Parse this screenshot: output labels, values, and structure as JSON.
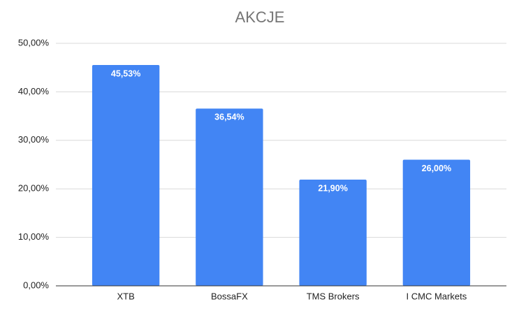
{
  "chart_data": {
    "type": "bar",
    "title": "AKCJE",
    "categories": [
      "XTB",
      "BossaFX",
      "TMS Brokers",
      "I CMC Markets"
    ],
    "values": [
      45.53,
      36.54,
      21.9,
      26.0
    ],
    "value_labels": [
      "45,53%",
      "36,54%",
      "21,90%",
      "26,00%"
    ],
    "color": "#4285f4",
    "ylim": [
      0,
      50
    ],
    "yticks": [
      {
        "value": 0,
        "label": "0,00%"
      },
      {
        "value": 10,
        "label": "10,00%"
      },
      {
        "value": 20,
        "label": "20,00%"
      },
      {
        "value": 30,
        "label": "30,00%"
      },
      {
        "value": 40,
        "label": "40,00%"
      },
      {
        "value": 50,
        "label": "50,00%"
      }
    ],
    "grid": true
  }
}
